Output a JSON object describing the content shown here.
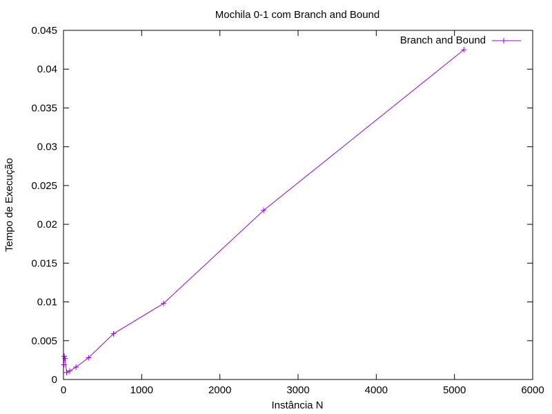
{
  "chart_data": {
    "type": "line",
    "title": "Mochila 0-1 com Branch and Bound",
    "xlabel": "Instância N",
    "ylabel": "Tempo de Execução",
    "xlim": [
      0,
      6000
    ],
    "ylim": [
      0,
      0.045
    ],
    "x_ticks": [
      "0",
      "1000",
      "2000",
      "3000",
      "4000",
      "5000",
      "6000"
    ],
    "y_ticks": [
      "0",
      "0.005",
      "0.01",
      "0.015",
      "0.02",
      "0.025",
      "0.03",
      "0.035",
      "0.04",
      "0.045"
    ],
    "grid": false,
    "legend_position": "top-right",
    "series": [
      {
        "name": "Branch and Bound",
        "color": "#9400d3",
        "marker": "plus",
        "points": [
          {
            "x": 5,
            "y": 0.0019
          },
          {
            "x": 10,
            "y": 0.003
          },
          {
            "x": 20,
            "y": 0.0027
          },
          {
            "x": 40,
            "y": 0.0009
          },
          {
            "x": 80,
            "y": 0.0011
          },
          {
            "x": 160,
            "y": 0.0016
          },
          {
            "x": 320,
            "y": 0.0028
          },
          {
            "x": 640,
            "y": 0.0059
          },
          {
            "x": 1280,
            "y": 0.0098
          },
          {
            "x": 2560,
            "y": 0.0218
          },
          {
            "x": 5120,
            "y": 0.0425
          }
        ]
      }
    ]
  }
}
